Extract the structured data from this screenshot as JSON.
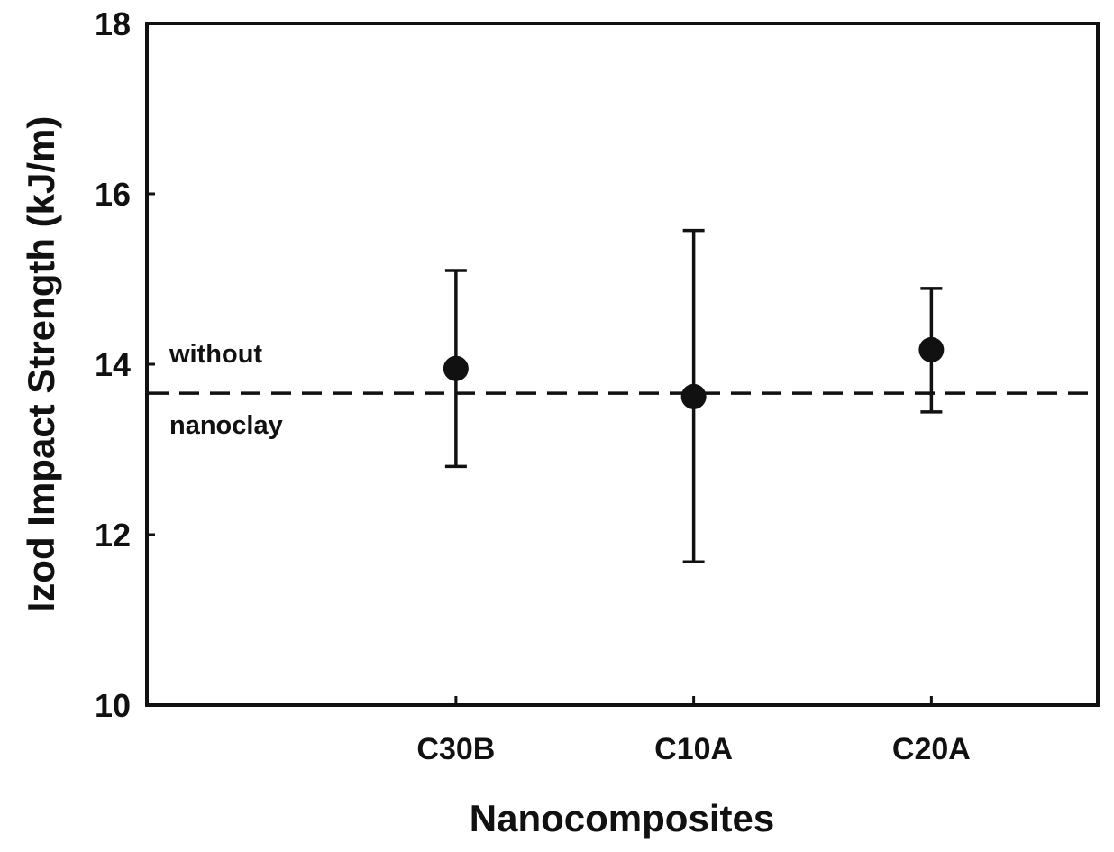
{
  "chart_data": {
    "type": "scatter",
    "title": "",
    "xlabel": "Nanocomposites",
    "ylabel": "Izod Impact Strength (kJ/m)",
    "ylim": [
      10,
      18
    ],
    "xlim": [
      -0.3,
      3.7
    ],
    "yticks": [
      "10",
      "12",
      "14",
      "16",
      "18"
    ],
    "categories": [
      "C30B",
      "C10A",
      "C20A"
    ],
    "grid": false,
    "series": [
      {
        "name": "Nanocomposites",
        "values": [
          13.95,
          13.62,
          14.17
        ],
        "error_upper": [
          15.1,
          15.57,
          14.89
        ],
        "error_lower": [
          12.8,
          11.68,
          13.44
        ]
      }
    ],
    "reference_line": {
      "value": 13.66,
      "style": "dashed",
      "label_above": "without",
      "label_below": "nanoclay"
    }
  }
}
